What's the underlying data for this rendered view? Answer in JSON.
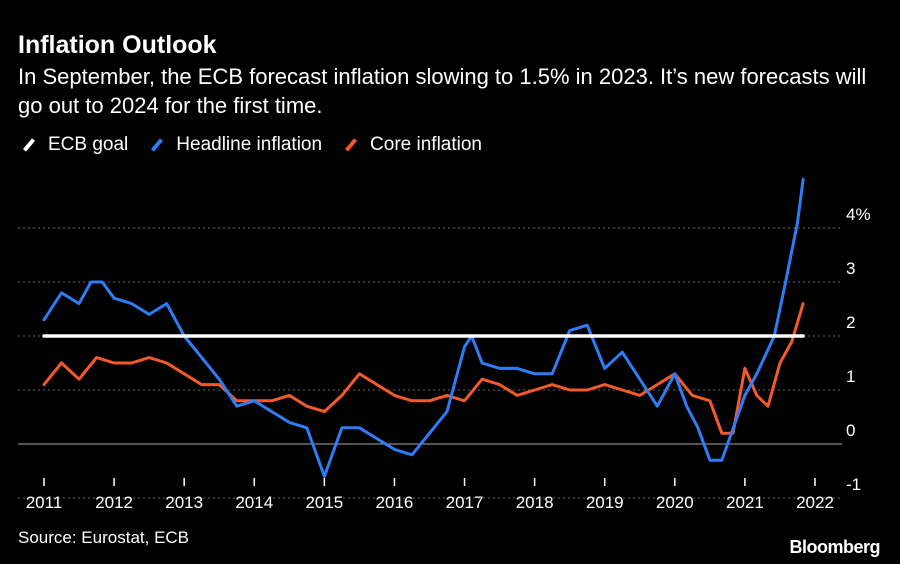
{
  "title": "Inflation Outlook",
  "subtitle": "In September, the ECB forecast inflation slowing to 1.5% in 2023. It’s new forecasts will go out to 2024 for the first time.",
  "source": "Source: Eurostat, ECB",
  "brand": "Bloomberg",
  "colors": {
    "ecb_goal": "#ffffff",
    "headline": "#2e7cf6",
    "core": "#f2592b",
    "grid": "#666666",
    "background": "#000000"
  },
  "chart_data": {
    "type": "line",
    "title": "Inflation Outlook",
    "xlabel": "",
    "ylabel": "",
    "xlim": [
      2011,
      2022
    ],
    "ylim": [
      -1,
      4
    ],
    "y_ticks": [
      -1,
      0,
      1,
      2,
      3,
      4
    ],
    "y_tick_labels": [
      "-1",
      "0",
      "1",
      "2",
      "3",
      "4%"
    ],
    "x_ticks": [
      2011,
      2012,
      2013,
      2014,
      2015,
      2016,
      2017,
      2018,
      2019,
      2020,
      2021,
      2022
    ],
    "x_tick_labels": [
      "2011",
      "2012",
      "2013",
      "2014",
      "2015",
      "2016",
      "2017",
      "2018",
      "2019",
      "2020",
      "2021",
      "2022"
    ],
    "grid": true,
    "legend_position": "top-left",
    "series": [
      {
        "name": "ECB goal",
        "x": [
          2011.0,
          2021.83
        ],
        "y": [
          2.0,
          2.0
        ]
      },
      {
        "name": "Headline inflation",
        "x": [
          2011.0,
          2011.25,
          2011.5,
          2011.67,
          2011.83,
          2012.0,
          2012.25,
          2012.5,
          2012.75,
          2013.0,
          2013.25,
          2013.5,
          2013.75,
          2014.0,
          2014.25,
          2014.5,
          2014.75,
          2015.0,
          2015.25,
          2015.5,
          2015.75,
          2016.0,
          2016.25,
          2016.5,
          2016.75,
          2017.0,
          2017.1,
          2017.25,
          2017.5,
          2017.75,
          2018.0,
          2018.25,
          2018.5,
          2018.75,
          2019.0,
          2019.25,
          2019.5,
          2019.75,
          2020.0,
          2020.17,
          2020.33,
          2020.5,
          2020.67,
          2021.0,
          2021.17,
          2021.42,
          2021.58,
          2021.75,
          2021.83
        ],
        "y": [
          2.3,
          2.8,
          2.6,
          3.0,
          3.0,
          2.7,
          2.6,
          2.4,
          2.6,
          2.0,
          1.6,
          1.2,
          0.7,
          0.8,
          0.6,
          0.4,
          0.3,
          -0.6,
          0.3,
          0.3,
          0.1,
          -0.1,
          -0.2,
          0.2,
          0.6,
          1.8,
          2.0,
          1.5,
          1.4,
          1.4,
          1.3,
          1.3,
          2.1,
          2.2,
          1.4,
          1.7,
          1.2,
          0.7,
          1.3,
          0.7,
          0.3,
          -0.3,
          -0.3,
          0.9,
          1.3,
          2.0,
          3.0,
          4.1,
          4.9
        ]
      },
      {
        "name": "Core inflation",
        "x": [
          2011.0,
          2011.25,
          2011.5,
          2011.75,
          2012.0,
          2012.25,
          2012.5,
          2012.75,
          2013.0,
          2013.25,
          2013.5,
          2013.75,
          2014.0,
          2014.25,
          2014.5,
          2014.75,
          2015.0,
          2015.25,
          2015.5,
          2015.75,
          2016.0,
          2016.25,
          2016.5,
          2016.75,
          2017.0,
          2017.25,
          2017.5,
          2017.75,
          2018.0,
          2018.25,
          2018.5,
          2018.75,
          2019.0,
          2019.25,
          2019.5,
          2019.75,
          2020.0,
          2020.25,
          2020.5,
          2020.67,
          2020.83,
          2021.0,
          2021.17,
          2021.33,
          2021.5,
          2021.67,
          2021.83
        ],
        "y": [
          1.1,
          1.5,
          1.2,
          1.6,
          1.5,
          1.5,
          1.6,
          1.5,
          1.3,
          1.1,
          1.1,
          0.8,
          0.8,
          0.8,
          0.9,
          0.7,
          0.6,
          0.9,
          1.3,
          1.1,
          0.9,
          0.8,
          0.8,
          0.9,
          0.8,
          1.2,
          1.1,
          0.9,
          1.0,
          1.1,
          1.0,
          1.0,
          1.1,
          1.0,
          0.9,
          1.1,
          1.3,
          0.9,
          0.8,
          0.2,
          0.2,
          1.4,
          0.9,
          0.7,
          1.5,
          1.9,
          2.6
        ]
      }
    ]
  }
}
